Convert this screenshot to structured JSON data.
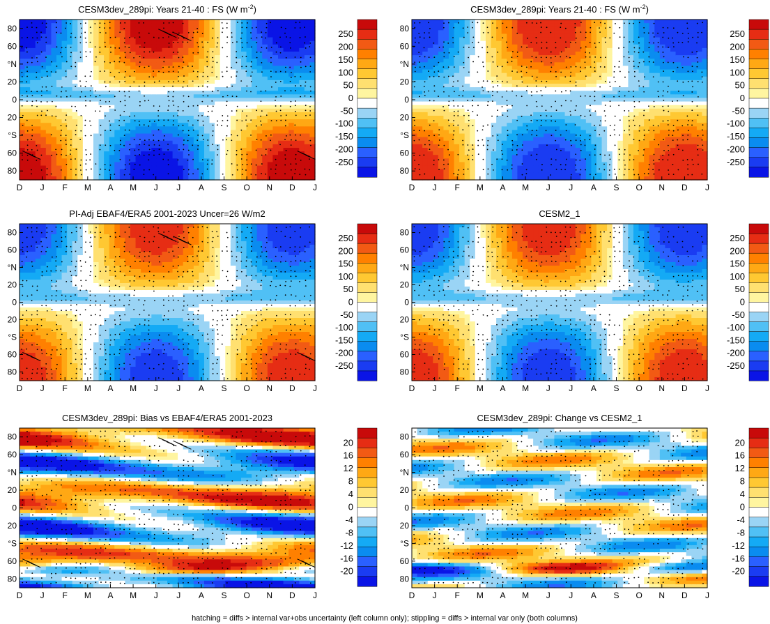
{
  "figure": {
    "footnote": "hatching = diffs > internal var+obs uncertainty (left column only); stippling = diffs > internal var only (both columns)"
  },
  "chart_data": [
    {
      "type": "heatmap",
      "title": "CESM3dev_289pi: Years 21-40 : FS (W m",
      "title_sup": "-2",
      "title_tail": ")",
      "x_ticks": [
        "D",
        "J",
        "F",
        "M",
        "A",
        "M",
        "J",
        "J",
        "A",
        "S",
        "O",
        "N",
        "D",
        "J"
      ],
      "y_ticks": [
        "80",
        "60",
        "°N",
        "20",
        "0",
        "20",
        "°S",
        "60",
        "80"
      ],
      "y_tick_values": [
        80,
        60,
        40,
        20,
        0,
        -20,
        -40,
        -60,
        -80
      ],
      "ylim": [
        -90,
        90
      ],
      "colorbar_labels": [
        "250",
        "200",
        "150",
        "100",
        "50",
        "0",
        "-50",
        "-100",
        "-150",
        "-200",
        "-250"
      ],
      "colorbar_range": [
        -275,
        275
      ],
      "field": "seasonal",
      "amplitude": 235,
      "hatching": true
    },
    {
      "type": "heatmap",
      "title": "CESM3dev_289pi: Years 21-40 : FS (W m",
      "title_sup": "-2",
      "title_tail": ")",
      "x_ticks": [
        "D",
        "J",
        "F",
        "M",
        "A",
        "M",
        "J",
        "J",
        "A",
        "S",
        "O",
        "N",
        "D",
        "J"
      ],
      "y_ticks": [
        "80",
        "60",
        "°N",
        "20",
        "0",
        "20",
        "°S",
        "60",
        "80"
      ],
      "y_tick_values": [
        80,
        60,
        40,
        20,
        0,
        -20,
        -40,
        -60,
        -80
      ],
      "ylim": [
        -90,
        90
      ],
      "colorbar_labels": [
        "250",
        "200",
        "150",
        "100",
        "50",
        "0",
        "-50",
        "-100",
        "-150",
        "-200",
        "-250"
      ],
      "colorbar_range": [
        -275,
        275
      ],
      "field": "seasonal",
      "amplitude": 215,
      "hatching": false
    },
    {
      "type": "heatmap",
      "title": "PI-Adj EBAF4/ERA5 2001-2023 Uncer=26 W/m2",
      "x_ticks": [
        "D",
        "J",
        "F",
        "M",
        "A",
        "M",
        "J",
        "J",
        "A",
        "S",
        "O",
        "N",
        "D",
        "J"
      ],
      "y_ticks": [
        "80",
        "60",
        "°N",
        "20",
        "0",
        "20",
        "°S",
        "60",
        "80"
      ],
      "y_tick_values": [
        80,
        60,
        40,
        20,
        0,
        -20,
        -40,
        -60,
        -80
      ],
      "ylim": [
        -90,
        90
      ],
      "colorbar_labels": [
        "250",
        "200",
        "150",
        "100",
        "50",
        "0",
        "-50",
        "-100",
        "-150",
        "-200",
        "-250"
      ],
      "colorbar_range": [
        -275,
        275
      ],
      "field": "seasonal",
      "amplitude": 200,
      "hatching": true
    },
    {
      "type": "heatmap",
      "title": "CESM2_1",
      "x_ticks": [
        "D",
        "J",
        "F",
        "M",
        "A",
        "M",
        "J",
        "J",
        "A",
        "S",
        "O",
        "N",
        "D",
        "J"
      ],
      "y_ticks": [
        "80",
        "60",
        "°N",
        "20",
        "0",
        "20",
        "°S",
        "60",
        "80"
      ],
      "y_tick_values": [
        80,
        60,
        40,
        20,
        0,
        -20,
        -40,
        -60,
        -80
      ],
      "ylim": [
        -90,
        90
      ],
      "colorbar_labels": [
        "250",
        "200",
        "150",
        "100",
        "50",
        "0",
        "-50",
        "-100",
        "-150",
        "-200",
        "-250"
      ],
      "colorbar_range": [
        -275,
        275
      ],
      "field": "seasonal",
      "amplitude": 205,
      "hatching": false
    },
    {
      "type": "heatmap",
      "title": "CESM3dev_289pi: Bias vs EBAF4/ERA5 2001-2023",
      "x_ticks": [
        "D",
        "J",
        "F",
        "M",
        "A",
        "M",
        "J",
        "J",
        "A",
        "S",
        "O",
        "N",
        "D",
        "J"
      ],
      "y_ticks": [
        "80",
        "60",
        "°N",
        "20",
        "0",
        "20",
        "°S",
        "60",
        "80"
      ],
      "y_tick_values": [
        80,
        60,
        40,
        20,
        0,
        -20,
        -40,
        -60,
        -80
      ],
      "ylim": [
        -90,
        90
      ],
      "colorbar_labels": [
        "20",
        "16",
        "12",
        "8",
        "4",
        "0",
        "-4",
        "-8",
        "-12",
        "-16",
        "-20"
      ],
      "colorbar_range": [
        -22,
        22
      ],
      "field": "bias",
      "hatching": true
    },
    {
      "type": "heatmap",
      "title": "CESM3dev_289pi: Change vs CESM2_1",
      "x_ticks": [
        "D",
        "J",
        "F",
        "M",
        "A",
        "M",
        "J",
        "J",
        "A",
        "S",
        "O",
        "N",
        "D",
        "J"
      ],
      "y_ticks": [
        "80",
        "60",
        "°N",
        "20",
        "0",
        "20",
        "°S",
        "60",
        "80"
      ],
      "y_tick_values": [
        80,
        60,
        40,
        20,
        0,
        -20,
        -40,
        -60,
        -80
      ],
      "ylim": [
        -90,
        90
      ],
      "colorbar_labels": [
        "20",
        "16",
        "12",
        "8",
        "4",
        "0",
        "-4",
        "-8",
        "-12",
        "-16",
        "-20"
      ],
      "colorbar_range": [
        -22,
        22
      ],
      "field": "change",
      "hatching": false
    }
  ]
}
